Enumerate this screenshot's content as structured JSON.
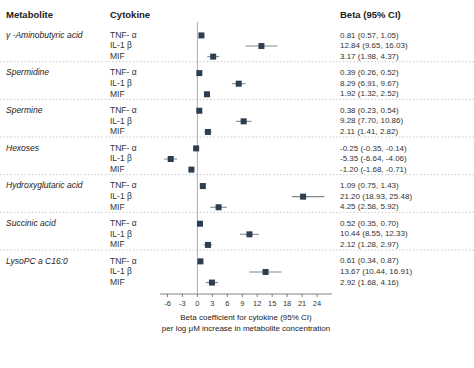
{
  "chart_data": {
    "type": "forest",
    "column_headers": [
      "Metabolite",
      "Cytokine",
      "Beta (95% CI)"
    ],
    "xlabel": "Beta coefficient for cytokine (95% CI)\nper log μM increase in metabolite concentration",
    "xlim": [
      -7.5,
      27
    ],
    "xticks": [
      -6,
      -3,
      0,
      3,
      6,
      9,
      12,
      15,
      18,
      21,
      24
    ],
    "reference_line": 0,
    "data_labels": true,
    "groups": [
      {
        "name": "γ -Aminobutyric acid",
        "categories": [
          "TNF- α",
          "IL-1 β",
          "MIF"
        ],
        "values": [
          0.81,
          12.84,
          3.17
        ],
        "ci_low": [
          0.57,
          9.65,
          1.98
        ],
        "ci_high": [
          1.05,
          16.03,
          4.37
        ],
        "value_labels": [
          "0.81 (0.57, 1.05)",
          "12.84 (9.65, 16.03)",
          "3.17 (1.98, 4.37)"
        ]
      },
      {
        "name": "Spermidine",
        "categories": [
          "TNF- α",
          "IL-1 β",
          "MIF"
        ],
        "values": [
          0.39,
          8.29,
          1.92
        ],
        "ci_low": [
          0.26,
          6.91,
          1.32
        ],
        "ci_high": [
          0.52,
          9.67,
          2.52
        ],
        "value_labels": [
          "0.39 (0.26, 0.52)",
          "8.29 (6.91, 9.67)",
          "1.92 (1.32, 2.52)"
        ]
      },
      {
        "name": "Spermine",
        "categories": [
          "TNF- α",
          "IL-1 β",
          "MIF"
        ],
        "values": [
          0.38,
          9.28,
          2.11
        ],
        "ci_low": [
          0.23,
          7.7,
          1.41
        ],
        "ci_high": [
          0.54,
          10.86,
          2.82
        ],
        "value_labels": [
          "0.38 (0.23, 0.54)",
          "9.28 (7.70, 10.86)",
          "2.11 (1.41, 2.82)"
        ]
      },
      {
        "name": "Hexoses",
        "categories": [
          "TNF- α",
          "IL-1 β",
          "MIF"
        ],
        "values": [
          -0.25,
          -5.35,
          -1.2
        ],
        "ci_low": [
          -0.35,
          -6.64,
          -1.68
        ],
        "ci_high": [
          -0.14,
          -4.06,
          -0.71
        ],
        "value_labels": [
          "-0.25 (-0.35, -0.14)",
          "-5.35 (-6.64, -4.06)",
          "-1.20 (-1.68, -0.71)"
        ]
      },
      {
        "name": "Hydroxyglutaric acid",
        "categories": [
          "TNF- α",
          "IL-1 β",
          "MIF"
        ],
        "values": [
          1.09,
          21.2,
          4.25
        ],
        "ci_low": [
          0.75,
          18.93,
          2.58
        ],
        "ci_high": [
          1.43,
          25.48,
          5.92
        ],
        "value_labels": [
          "1.09 (0.75, 1.43)",
          "21.20 (18.93, 25.48)",
          "4.25 (2.58, 5.92)"
        ]
      },
      {
        "name": "Succinic acid",
        "categories": [
          "TNF- α",
          "IL-1 β",
          "MIF"
        ],
        "values": [
          0.52,
          10.44,
          2.12
        ],
        "ci_low": [
          0.35,
          8.55,
          1.28
        ],
        "ci_high": [
          0.7,
          12.33,
          2.97
        ],
        "value_labels": [
          "0.52 (0.35, 0.70)",
          "10.44 (8.55, 12.33)",
          "2.12 (1.28, 2.97)"
        ]
      },
      {
        "name": "LysoPC a C16:0",
        "categories": [
          "TNF- α",
          "IL-1 β",
          "MIF"
        ],
        "values": [
          0.61,
          13.67,
          2.92
        ],
        "ci_low": [
          0.34,
          10.44,
          1.68
        ],
        "ci_high": [
          0.87,
          16.91,
          4.16
        ],
        "value_labels": [
          "0.61 (0.34, 0.87)",
          "13.67 (10.44, 16.91)",
          "2.92 (1.68, 4.16)"
        ]
      }
    ]
  }
}
